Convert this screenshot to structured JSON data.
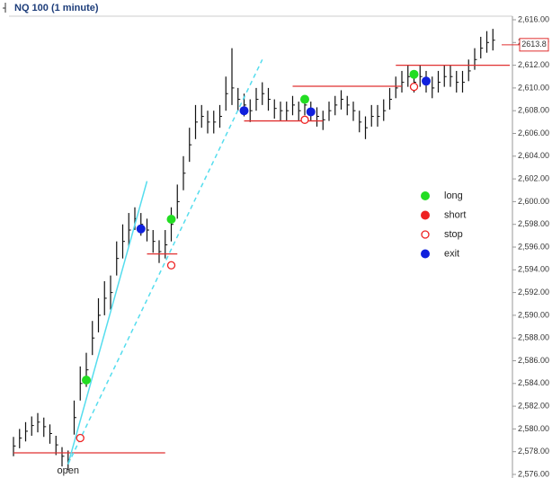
{
  "chart_data": {
    "type": "ohlc",
    "title": "NQ 100 (1 minute)",
    "high": [
      2579.3,
      2580,
      2580.6,
      2581.1,
      2581.4,
      2581,
      2580.4,
      2579.4,
      2578.4,
      2578.1,
      2582.5,
      2585.5,
      2586.7,
      2589.5,
      2591.5,
      2593,
      2593.5,
      2596.5,
      2598,
      2599,
      2599.5,
      2599,
      2598.5,
      2597.5,
      2596.6,
      2597.5,
      2599.5,
      2601.5,
      2604,
      2606.5,
      2608.5,
      2608.5,
      2608,
      2608,
      2608.5,
      2611,
      2613.5,
      2610,
      2609.5,
      2609,
      2610,
      2610.5,
      2610,
      2609,
      2608.8,
      2608.8,
      2609.3,
      2608.8,
      2609.3,
      2608.8,
      2608.3,
      2608,
      2608.8,
      2609.3,
      2609.8,
      2609.3,
      2608.8,
      2608,
      2607.5,
      2608.5,
      2608.5,
      2609,
      2610,
      2611,
      2611.5,
      2612,
      2611.5,
      2612,
      2611.5,
      2611,
      2611.5,
      2612,
      2612,
      2611.5,
      2611.5,
      2612.5,
      2613.5,
      2614.5,
      2615,
      2615.2
    ],
    "low": [
      2577.6,
      2578.3,
      2578.9,
      2579.4,
      2579.7,
      2579.3,
      2578.7,
      2577.7,
      2576.7,
      2576.4,
      2579.5,
      2582.5,
      2583.7,
      2586.5,
      2588.5,
      2590,
      2590.5,
      2593.5,
      2595,
      2596,
      2597.5,
      2597,
      2596.5,
      2595.5,
      2594.6,
      2595,
      2596.5,
      2598.5,
      2601,
      2603.5,
      2605.5,
      2606.5,
      2606,
      2606,
      2606.5,
      2608,
      2608.5,
      2608,
      2607.5,
      2607,
      2608,
      2608.5,
      2608,
      2607.3,
      2607.1,
      2607.1,
      2607.6,
      2607.1,
      2607.6,
      2607.1,
      2606.6,
      2606.3,
      2607.1,
      2607.6,
      2608.1,
      2607.6,
      2607.1,
      2606.1,
      2605.5,
      2606.6,
      2606.6,
      2607.1,
      2608.1,
      2609.1,
      2609.6,
      2610.1,
      2609.6,
      2610.1,
      2609.6,
      2609.1,
      2609.6,
      2610.1,
      2610.1,
      2609.6,
      2609.6,
      2610.6,
      2611.6,
      2612.6,
      2613.1,
      2613.3
    ],
    "close": [
      2578.5,
      2579.2,
      2579.8,
      2580.3,
      2580.6,
      2580.2,
      2579.6,
      2578.6,
      2577.6,
      2577.3,
      2581,
      2584,
      2585.2,
      2588,
      2590,
      2591.5,
      2592,
      2595,
      2596.5,
      2597.5,
      2598.5,
      2598,
      2597.5,
      2596.5,
      2595.6,
      2596.2,
      2598,
      2600,
      2602.5,
      2605,
      2607,
      2607.5,
      2607,
      2607,
      2607.5,
      2609.5,
      2610,
      2609,
      2608.5,
      2608,
      2609,
      2609.5,
      2609,
      2608.2,
      2608,
      2608,
      2608.5,
      2608,
      2608.5,
      2608,
      2607.5,
      2607.2,
      2608,
      2608.5,
      2609,
      2608.5,
      2608,
      2607,
      2606.5,
      2607.5,
      2607.5,
      2608,
      2609,
      2610,
      2610.5,
      2611,
      2610.5,
      2611,
      2610.5,
      2610,
      2610.5,
      2611,
      2611,
      2610.5,
      2610.5,
      2611.5,
      2612.5,
      2613.5,
      2614,
      2614.2
    ],
    "bar_color": "#111111",
    "signals": [
      {
        "name": "long",
        "color": "#22dd22",
        "marker": "filled",
        "bars": [
          12,
          26,
          48,
          66
        ],
        "prices": [
          2584.3,
          2598.45,
          2609,
          2611.2
        ]
      },
      {
        "name": "short",
        "color": "#ee2222",
        "marker": "filled",
        "bars": [],
        "prices": []
      },
      {
        "name": "stop",
        "color": "#ee2222",
        "marker": "open",
        "bars": [
          11,
          26,
          48,
          66
        ],
        "prices": [
          2579.2,
          2594.4,
          2607.2,
          2610.1
        ]
      },
      {
        "name": "exit",
        "color": "#1020dd",
        "marker": "filled",
        "bars": [
          21,
          38,
          49,
          68
        ],
        "prices": [
          2597.6,
          2608,
          2607.9,
          2610.6
        ]
      }
    ],
    "levels": [
      {
        "price": 2577.9,
        "from": 0,
        "to": 25
      },
      {
        "price": 2595.4,
        "from": 22,
        "to": 27
      },
      {
        "price": 2607.1,
        "from": 38,
        "to": 51
      },
      {
        "price": 2610.15,
        "from": 46,
        "to": 64
      },
      {
        "price": 2612,
        "from": 63,
        "to": 82
      }
    ],
    "level_color": "#e03030",
    "trendlines": [
      {
        "from": [
          9,
          2576.9
        ],
        "to": [
          22,
          2601.8
        ],
        "dashed": false
      },
      {
        "from": [
          9,
          2576.9
        ],
        "to": [
          41,
          2612.5
        ],
        "dashed": true
      }
    ],
    "trendline_color": "#55ddee",
    "annotation": "open",
    "annotation_bar": 9,
    "last_price": 2613.8,
    "ylim": [
      2576,
      2616
    ],
    "yticks": [
      {
        "value": 2576,
        "label": "2,576.00"
      },
      {
        "value": 2578,
        "label": "2,578.00"
      },
      {
        "value": 2580,
        "label": "2,580.00"
      },
      {
        "value": 2582,
        "label": "2,582.00"
      },
      {
        "value": 2584,
        "label": "2,584.00"
      },
      {
        "value": 2586,
        "label": "2,586.00"
      },
      {
        "value": 2588,
        "label": "2,588.00"
      },
      {
        "value": 2590,
        "label": "2,590.00"
      },
      {
        "value": 2592,
        "label": "2,592.00"
      },
      {
        "value": 2594,
        "label": "2,594.00"
      },
      {
        "value": 2596,
        "label": "2,596.00"
      },
      {
        "value": 2598,
        "label": "2,598.00"
      },
      {
        "value": 2600,
        "label": "2,600.00"
      },
      {
        "value": 2602,
        "label": "2,602.00"
      },
      {
        "value": 2604,
        "label": "2,604.00"
      },
      {
        "value": 2606,
        "label": "2,606.00"
      },
      {
        "value": 2608,
        "label": "2,608.00"
      },
      {
        "value": 2610,
        "label": "2,610.00"
      },
      {
        "value": 2612,
        "label": "2,612.00"
      },
      {
        "value": 2614,
        "label": "2,614.00"
      },
      {
        "value": 2616,
        "label": "2,616.00"
      }
    ],
    "grid": false
  }
}
